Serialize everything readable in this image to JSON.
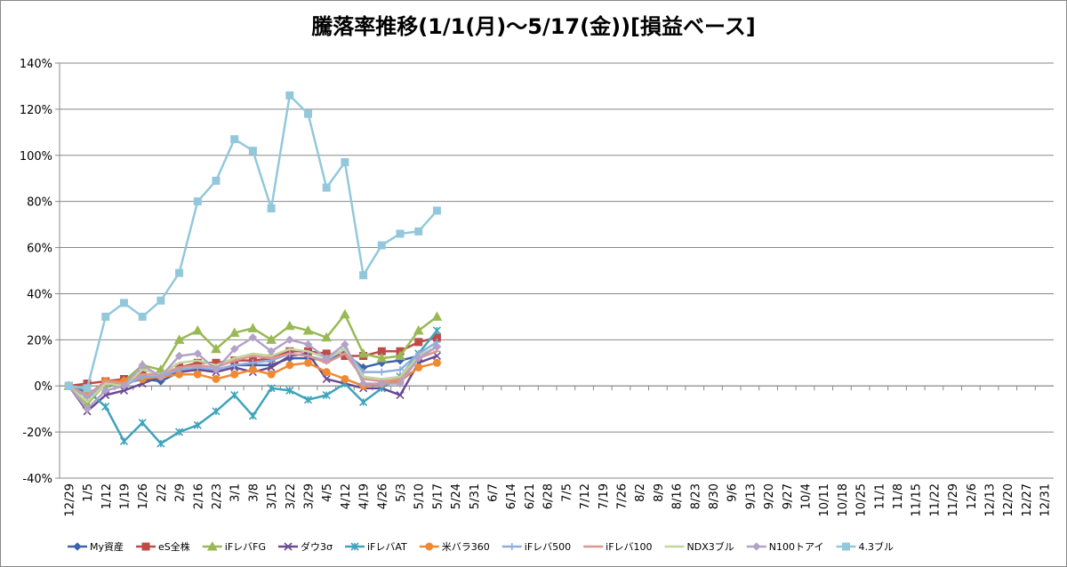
{
  "chart_data": {
    "type": "line",
    "title": "騰落率推移(1/1(月)～5/17(金))[損益ベース]",
    "categories": [
      "12/29",
      "1/5",
      "1/12",
      "1/19",
      "1/26",
      "2/2",
      "2/9",
      "2/16",
      "2/23",
      "3/1",
      "3/8",
      "3/15",
      "3/22",
      "3/29",
      "4/5",
      "4/12",
      "4/19",
      "4/26",
      "5/3",
      "5/10",
      "5/17",
      "5/24",
      "5/31",
      "6/7",
      "6/14",
      "6/21",
      "6/28",
      "7/5",
      "7/12",
      "7/19",
      "7/26",
      "8/2",
      "8/9",
      "8/16",
      "8/23",
      "8/30",
      "9/6",
      "9/13",
      "9/20",
      "9/27",
      "10/4",
      "10/11",
      "10/18",
      "10/25",
      "11/1",
      "11/8",
      "11/15",
      "11/22",
      "11/29",
      "12/6",
      "12/13",
      "12/20",
      "12/27",
      "12/31"
    ],
    "ylim": [
      -40,
      140
    ],
    "yticks": [
      {
        "value": -40,
        "label": "-40%"
      },
      {
        "value": -20,
        "label": "-20%"
      },
      {
        "value": 0,
        "label": "0%"
      },
      {
        "value": 20,
        "label": "20%"
      },
      {
        "value": 40,
        "label": "40%"
      },
      {
        "value": 60,
        "label": "60%"
      },
      {
        "value": 80,
        "label": "80%"
      },
      {
        "value": 100,
        "label": "100%"
      },
      {
        "value": 120,
        "label": "120%"
      },
      {
        "value": 140,
        "label": "140%"
      }
    ],
    "grid": true,
    "legend": "bottom",
    "series": [
      {
        "name": "My資産",
        "color": "#3c64aa",
        "marker": "diamond",
        "values": [
          0,
          -3,
          0,
          1,
          3,
          2,
          6,
          7,
          7,
          9,
          9,
          9,
          12,
          12,
          11,
          14,
          8,
          10,
          11,
          13,
          17,
          null,
          null,
          null,
          null,
          null,
          null,
          null,
          null,
          null,
          null,
          null,
          null,
          null,
          null,
          null,
          null,
          null,
          null,
          null,
          null,
          null,
          null,
          null,
          null,
          null,
          null,
          null,
          null,
          null,
          null,
          null,
          null,
          null
        ]
      },
      {
        "name": "eS全株",
        "color": "#be4b48",
        "marker": "square",
        "values": [
          0,
          1,
          2,
          3,
          5,
          5,
          8,
          10,
          10,
          11,
          11,
          12,
          15,
          15,
          14,
          13,
          13,
          15,
          15,
          19,
          21,
          null,
          null,
          null,
          null,
          null,
          null,
          null,
          null,
          null,
          null,
          null,
          null,
          null,
          null,
          null,
          null,
          null,
          null,
          null,
          null,
          null,
          null,
          null,
          null,
          null,
          null,
          null,
          null,
          null,
          null,
          null,
          null,
          null
        ]
      },
      {
        "name": "iFレバFG",
        "color": "#98b954",
        "marker": "triangle",
        "values": [
          0,
          -8,
          1,
          2,
          9,
          7,
          20,
          24,
          16,
          23,
          25,
          20,
          26,
          24,
          21,
          31,
          14,
          12,
          13,
          24,
          30,
          null,
          null,
          null,
          null,
          null,
          null,
          null,
          null,
          null,
          null,
          null,
          null,
          null,
          null,
          null,
          null,
          null,
          null,
          null,
          null,
          null,
          null,
          null,
          null,
          null,
          null,
          null,
          null,
          null,
          null,
          null,
          null,
          null
        ]
      },
      {
        "name": "ダウ3σ",
        "color": "#6a4a92",
        "marker": "x",
        "values": [
          0,
          -11,
          -4,
          -2,
          1,
          4,
          6,
          7,
          6,
          8,
          6,
          8,
          13,
          14,
          3,
          1,
          -1,
          -1,
          -4,
          10,
          13,
          null,
          null,
          null,
          null,
          null,
          null,
          null,
          null,
          null,
          null,
          null,
          null,
          null,
          null,
          null,
          null,
          null,
          null,
          null,
          null,
          null,
          null,
          null,
          null,
          null,
          null,
          null,
          null,
          null,
          null,
          null,
          null,
          null
        ]
      },
      {
        "name": "iFレバAT",
        "color": "#3fa3bb",
        "marker": "star",
        "values": [
          0,
          -2,
          -9,
          -24,
          -16,
          -25,
          -20,
          -17,
          -11,
          -4,
          -13,
          -1,
          -2,
          -6,
          -4,
          1,
          -7,
          -1,
          4,
          14,
          24,
          null,
          null,
          null,
          null,
          null,
          null,
          null,
          null,
          null,
          null,
          null,
          null,
          null,
          null,
          null,
          null,
          null,
          null,
          null,
          null,
          null,
          null,
          null,
          null,
          null,
          null,
          null,
          null,
          null,
          null,
          null,
          null,
          null
        ]
      },
      {
        "name": "米バラ360",
        "color": "#f08a32",
        "marker": "circle",
        "values": [
          0,
          -4,
          2,
          2,
          3,
          4,
          5,
          5,
          3,
          5,
          7,
          5,
          9,
          10,
          6,
          3,
          0,
          1,
          2,
          8,
          10,
          null,
          null,
          null,
          null,
          null,
          null,
          null,
          null,
          null,
          null,
          null,
          null,
          null,
          null,
          null,
          null,
          null,
          null,
          null,
          null,
          null,
          null,
          null,
          null,
          null,
          null,
          null,
          null,
          null,
          null,
          null,
          null,
          null
        ]
      },
      {
        "name": "iFレバ500",
        "color": "#8eaee0",
        "marker": "plus",
        "values": [
          0,
          -5,
          1,
          0,
          4,
          4,
          7,
          8,
          7,
          9,
          10,
          11,
          14,
          13,
          11,
          16,
          6,
          6,
          7,
          14,
          19,
          null,
          null,
          null,
          null,
          null,
          null,
          null,
          null,
          null,
          null,
          null,
          null,
          null,
          null,
          null,
          null,
          null,
          null,
          null,
          null,
          null,
          null,
          null,
          null,
          null,
          null,
          null,
          null,
          null,
          null,
          null,
          null,
          null
        ]
      },
      {
        "name": "iFレバ100",
        "color": "#dc9694",
        "marker": "dash",
        "values": [
          0,
          -4,
          2,
          1,
          5,
          5,
          8,
          9,
          8,
          11,
          13,
          12,
          14,
          13,
          10,
          14,
          3,
          2,
          3,
          12,
          15,
          null,
          null,
          null,
          null,
          null,
          null,
          null,
          null,
          null,
          null,
          null,
          null,
          null,
          null,
          null,
          null,
          null,
          null,
          null,
          null,
          null,
          null,
          null,
          null,
          null,
          null,
          null,
          null,
          null,
          null,
          null,
          null,
          null
        ]
      },
      {
        "name": "NDX3ブル",
        "color": "#c3d69b",
        "marker": "none",
        "values": [
          0,
          -7,
          1,
          0,
          7,
          5,
          10,
          11,
          9,
          12,
          14,
          13,
          16,
          15,
          12,
          16,
          4,
          3,
          4,
          13,
          17,
          null,
          null,
          null,
          null,
          null,
          null,
          null,
          null,
          null,
          null,
          null,
          null,
          null,
          null,
          null,
          null,
          null,
          null,
          null,
          null,
          null,
          null,
          null,
          null,
          null,
          null,
          null,
          null,
          null,
          null,
          null,
          null,
          null
        ]
      },
      {
        "name": "N100トアイ",
        "color": "#b3a2c7",
        "marker": "diamond",
        "values": [
          0,
          -10,
          -2,
          0,
          9,
          4,
          13,
          14,
          7,
          16,
          21,
          15,
          20,
          18,
          12,
          18,
          1,
          1,
          1,
          12,
          17,
          null,
          null,
          null,
          null,
          null,
          null,
          null,
          null,
          null,
          null,
          null,
          null,
          null,
          null,
          null,
          null,
          null,
          null,
          null,
          null,
          null,
          null,
          null,
          null,
          null,
          null,
          null,
          null,
          null,
          null,
          null,
          null,
          null
        ]
      },
      {
        "name": "4.3ブル",
        "color": "#93c8dc",
        "marker": "square",
        "values": [
          0,
          -1,
          30,
          36,
          30,
          37,
          49,
          80,
          89,
          107,
          102,
          77,
          126,
          118,
          86,
          97,
          48,
          61,
          66,
          67,
          76,
          null,
          null,
          null,
          null,
          null,
          null,
          null,
          null,
          null,
          null,
          null,
          null,
          null,
          null,
          null,
          null,
          null,
          null,
          null,
          null,
          null,
          null,
          null,
          null,
          null,
          null,
          null,
          null,
          null,
          null,
          null,
          null,
          null
        ]
      }
    ]
  }
}
